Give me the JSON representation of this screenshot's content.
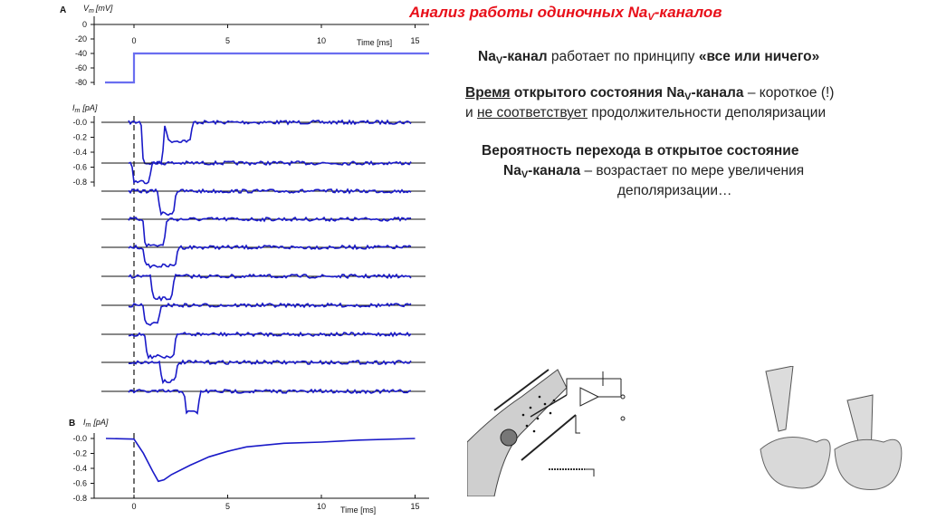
{
  "slide": {
    "title_main": "Анализ работы одиночных Na",
    "title_sub": "V",
    "title_end": "-каналов"
  },
  "text": {
    "p1": {
      "na": "Na",
      "v": "V",
      "bold": "-канал",
      "normal": " работает по принципу ",
      "quote": "«все или ничего»"
    },
    "p2": {
      "u1": "Время",
      "b1": " открытого состояния Na",
      "v": "V",
      "b2": "-канала",
      "n1": " – короткое (!)",
      "n2": "и ",
      "u2": "не соответствует",
      "n3": " продолжительности деполяризации"
    },
    "p3": {
      "line1": "Вероятность перехода в открытое состояние",
      "na": "Na",
      "v": "V",
      "b": "-канала",
      "n": " – возрастает по мере увеличения",
      "line3": "деполяризации…"
    }
  },
  "figure": {
    "panel_a": "A",
    "panel_b": "B",
    "vm_label": "V",
    "vm_sub": "m",
    "vm_unit": "[mV]",
    "im_label": "I",
    "im_sub": "m",
    "im_unit": "[pA]",
    "time_label": "Time [ms]",
    "vm_ticks": [
      "0",
      "-20",
      "-40",
      "-60",
      "-80"
    ],
    "im_ticks": [
      "-0.0",
      "-0.2",
      "-0.4",
      "-0.6",
      "-0.8"
    ],
    "time_ticks": [
      "0",
      "5",
      "10",
      "15"
    ]
  },
  "chart_data": {
    "type": "line",
    "vm_step": {
      "holding_mV": -80,
      "step_mV": -40,
      "step_time_ms": 0
    },
    "single_channel_openings_ms": [
      [
        [
          0.5,
          1.0,
          0.55
        ],
        [
          1.8,
          1.2,
          0.25
        ]
      ],
      [
        [
          0.0,
          0.8,
          0.25
        ]
      ],
      [
        [
          1.4,
          0.7,
          0.3
        ]
      ],
      [
        [
          0.6,
          1.0,
          0.35
        ]
      ],
      [
        [
          0.6,
          1.6,
          0.25
        ]
      ],
      [
        [
          1.0,
          1.0,
          0.3
        ]
      ],
      [
        [
          0.6,
          0.7,
          0.25
        ]
      ],
      [
        [
          0.7,
          1.4,
          0.3
        ]
      ],
      [
        [
          1.5,
          0.7,
          0.25
        ]
      ],
      [
        [
          2.8,
          0.6,
          0.28
        ]
      ]
    ],
    "ensemble_average": {
      "x_ms": [
        -1.5,
        0,
        0.5,
        1.0,
        1.3,
        1.6,
        2.0,
        3.0,
        4.0,
        5.0,
        6.0,
        8.0,
        10.0,
        12.0,
        15.0
      ],
      "y_pA": [
        0.0,
        0.0,
        -0.2,
        -0.45,
        -0.58,
        -0.55,
        -0.48,
        -0.35,
        -0.25,
        -0.17,
        -0.12,
        -0.07,
        -0.04,
        -0.02,
        0.0
      ]
    }
  }
}
